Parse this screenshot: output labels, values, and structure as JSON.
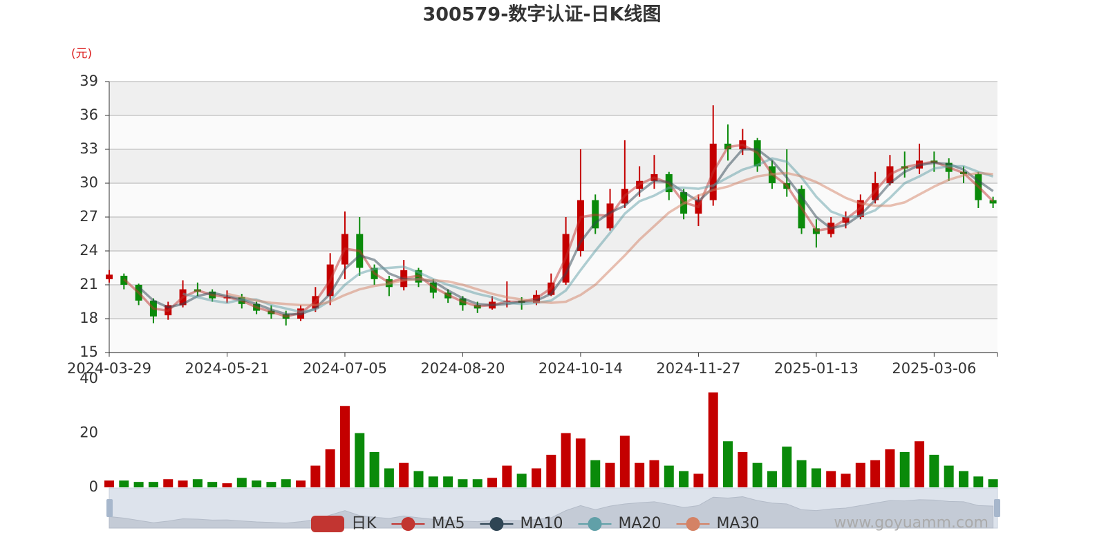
{
  "chart_data": [
    {
      "type": "candlestick",
      "title": "300579-数字认证-日K线图",
      "y_unit": "(元)",
      "categories": [
        "2024-03-29",
        null,
        null,
        null,
        null,
        null,
        null,
        null,
        "2024-05-21",
        null,
        null,
        null,
        null,
        null,
        null,
        null,
        "2024-07-05",
        null,
        null,
        null,
        null,
        null,
        null,
        null,
        "2024-08-20",
        null,
        null,
        null,
        null,
        null,
        null,
        null,
        "2024-10-14",
        null,
        null,
        null,
        null,
        null,
        null,
        null,
        "2024-11-27",
        null,
        null,
        null,
        null,
        null,
        null,
        null,
        "2025-01-13",
        null,
        null,
        null,
        null,
        null,
        null,
        null,
        "2025-03-06",
        null,
        null,
        null,
        null
      ],
      "ylim": [
        15,
        39
      ],
      "yticks": [
        15,
        18,
        21,
        24,
        27,
        30,
        33,
        36,
        39
      ],
      "grid": true,
      "line_opacity": 0.5,
      "up_color": "#c40000",
      "down_color": "#0a8a0a",
      "series": [
        {
          "name": "日K",
          "type": "candlestick",
          "color": "#c23531",
          "values": [
            [
              21.5,
              21.9,
              21.2,
              22.3
            ],
            [
              21.8,
              21.0,
              20.6,
              22.0
            ],
            [
              21.0,
              19.6,
              19.2,
              21.1
            ],
            [
              19.6,
              18.2,
              17.6,
              19.8
            ],
            [
              18.3,
              19.2,
              17.9,
              19.5
            ],
            [
              19.2,
              20.6,
              19.0,
              21.4
            ],
            [
              20.6,
              20.4,
              20.0,
              21.2
            ],
            [
              20.4,
              19.8,
              19.5,
              20.6
            ],
            [
              19.8,
              19.9,
              19.4,
              20.5
            ],
            [
              19.9,
              19.3,
              18.9,
              20.2
            ],
            [
              19.3,
              18.7,
              18.4,
              19.5
            ],
            [
              18.7,
              18.4,
              18.0,
              19.2
            ],
            [
              18.4,
              18.0,
              17.4,
              18.7
            ],
            [
              18.0,
              18.9,
              17.8,
              19.2
            ],
            [
              18.9,
              20.0,
              18.6,
              20.8
            ],
            [
              20.0,
              22.8,
              19.2,
              23.8
            ],
            [
              22.8,
              25.5,
              21.5,
              27.5
            ],
            [
              25.5,
              22.5,
              21.8,
              27.0
            ],
            [
              22.5,
              21.5,
              21.0,
              22.8
            ],
            [
              21.5,
              20.8,
              20.0,
              21.8
            ],
            [
              20.8,
              22.3,
              20.5,
              23.2
            ],
            [
              22.3,
              21.2,
              20.8,
              22.5
            ],
            [
              21.2,
              20.3,
              19.8,
              21.5
            ],
            [
              20.3,
              19.8,
              19.4,
              20.6
            ],
            [
              19.8,
              19.2,
              18.7,
              20.0
            ],
            [
              19.2,
              18.9,
              18.5,
              19.5
            ],
            [
              18.9,
              19.5,
              18.8,
              20.0
            ],
            [
              19.5,
              19.6,
              19.0,
              21.3
            ],
            [
              19.6,
              19.4,
              18.8,
              19.9
            ],
            [
              19.4,
              20.1,
              19.2,
              20.5
            ],
            [
              20.1,
              21.2,
              20.0,
              22.0
            ],
            [
              21.2,
              25.5,
              21.0,
              27.0
            ],
            [
              24.0,
              28.5,
              23.5,
              33.0
            ],
            [
              28.5,
              26.0,
              25.5,
              29.0
            ],
            [
              26.0,
              28.2,
              25.8,
              29.5
            ],
            [
              28.2,
              29.5,
              27.8,
              33.8
            ],
            [
              29.5,
              30.2,
              28.8,
              31.5
            ],
            [
              30.2,
              30.8,
              29.5,
              32.5
            ],
            [
              30.8,
              29.2,
              28.5,
              31.0
            ],
            [
              29.2,
              27.3,
              26.8,
              29.5
            ],
            [
              27.3,
              28.5,
              26.2,
              29.0
            ],
            [
              28.5,
              33.5,
              28.0,
              36.9
            ],
            [
              33.5,
              33.0,
              32.0,
              35.2
            ],
            [
              33.0,
              33.8,
              32.5,
              34.8
            ],
            [
              33.8,
              31.5,
              31.0,
              34.0
            ],
            [
              31.5,
              30.0,
              29.5,
              32.0
            ],
            [
              30.0,
              29.5,
              28.8,
              33.0
            ],
            [
              29.5,
              26.0,
              25.5,
              29.8
            ],
            [
              26.0,
              25.5,
              24.3,
              26.8
            ],
            [
              25.5,
              26.5,
              25.2,
              27.0
            ],
            [
              26.5,
              27.0,
              26.0,
              27.5
            ],
            [
              27.0,
              28.5,
              26.8,
              29.0
            ],
            [
              28.5,
              30.0,
              28.2,
              31.0
            ],
            [
              30.0,
              31.5,
              29.8,
              32.5
            ],
            [
              31.5,
              31.3,
              30.5,
              32.8
            ],
            [
              31.3,
              32.0,
              30.8,
              33.5
            ],
            [
              32.0,
              31.8,
              31.0,
              32.8
            ],
            [
              31.8,
              31.0,
              30.2,
              32.2
            ],
            [
              31.0,
              30.8,
              30.0,
              31.5
            ],
            [
              30.8,
              28.5,
              27.8,
              31.0
            ],
            [
              28.5,
              28.2,
              27.8,
              28.8
            ]
          ]
        },
        {
          "name": "MA5",
          "type": "line",
          "color": "#c23531",
          "values": [
            null,
            21.5,
            20.3,
            18.9,
            18.7,
            19.9,
            20.5,
            20.1,
            19.9,
            19.6,
            19.0,
            18.6,
            18.2,
            18.5,
            19.5,
            21.4,
            24.2,
            24.0,
            22.0,
            21.2,
            21.6,
            21.8,
            20.8,
            20.1,
            19.5,
            19.1,
            19.2,
            19.5,
            19.5,
            19.8,
            20.7,
            23.4,
            27.0,
            27.2,
            27.1,
            28.9,
            29.9,
            30.5,
            30.0,
            28.3,
            27.9,
            31.0,
            33.2,
            33.4,
            32.7,
            30.8,
            29.8,
            27.8,
            25.8,
            26.0,
            26.8,
            27.8,
            29.3,
            30.8,
            31.4,
            31.7,
            31.9,
            31.4,
            30.9,
            29.7,
            28.4
          ]
        },
        {
          "name": "MA10",
          "type": "line",
          "color": "#2f4554",
          "values": [
            null,
            null,
            20.8,
            19.6,
            19.0,
            19.3,
            20.0,
            20.3,
            20.0,
            19.7,
            19.3,
            18.8,
            18.4,
            18.4,
            18.9,
            20.2,
            22.4,
            23.6,
            23.2,
            22.0,
            21.5,
            21.5,
            21.3,
            20.5,
            19.8,
            19.3,
            19.2,
            19.3,
            19.5,
            19.6,
            20.2,
            22.0,
            24.8,
            26.5,
            27.4,
            28.0,
            29.2,
            30.2,
            30.1,
            29.2,
            28.4,
            29.6,
            31.5,
            33.0,
            33.0,
            32.0,
            30.5,
            28.8,
            27.0,
            26.0,
            26.3,
            27.2,
            28.5,
            30.0,
            31.0,
            31.6,
            31.8,
            31.7,
            31.2,
            30.2,
            29.3
          ]
        },
        {
          "name": "MA20",
          "type": "line",
          "color": "#61a0a8",
          "values": [
            null,
            null,
            null,
            null,
            null,
            20.2,
            19.9,
            19.6,
            19.4,
            19.7,
            19.7,
            19.2,
            18.9,
            18.6,
            18.8,
            19.6,
            21.0,
            22.0,
            22.4,
            22.5,
            22.6,
            22.1,
            21.5,
            21.0,
            20.6,
            20.2,
            19.9,
            19.4,
            19.3,
            19.4,
            19.6,
            20.5,
            22.3,
            24.0,
            25.6,
            27.3,
            28.4,
            28.9,
            29.6,
            29.6,
            29.5,
            29.8,
            30.5,
            31.2,
            31.6,
            32.2,
            31.9,
            30.5,
            28.8,
            27.5,
            27.0,
            27.1,
            27.6,
            28.7,
            30.0,
            30.6,
            31.3,
            31.5,
            31.5,
            31.0,
            30.6
          ]
        },
        {
          "name": "MA30",
          "type": "line",
          "color": "#d48265",
          "values": [
            null,
            null,
            null,
            null,
            null,
            null,
            null,
            null,
            20.2,
            19.9,
            19.6,
            19.4,
            19.3,
            19.2,
            19.2,
            19.5,
            20.1,
            20.6,
            20.9,
            21.1,
            21.4,
            21.5,
            21.4,
            21.3,
            21.0,
            20.6,
            20.2,
            19.9,
            19.7,
            19.5,
            19.4,
            19.5,
            20.1,
            21.0,
            22.3,
            23.6,
            25.0,
            26.2,
            27.4,
            28.2,
            28.9,
            29.4,
            29.7,
            30.2,
            30.6,
            30.8,
            30.9,
            30.6,
            30.1,
            29.4,
            28.7,
            28.2,
            28.0,
            28.0,
            28.3,
            29.0,
            29.7,
            30.3,
            30.7,
            30.9,
            30.8
          ]
        }
      ],
      "watermark": "www.goyuamm.com"
    },
    {
      "type": "bar",
      "ylim": [
        0,
        40
      ],
      "yticks": [
        0,
        20,
        40
      ],
      "values": [
        2.5,
        2.5,
        2,
        2,
        3,
        2.5,
        3,
        2,
        1.5,
        3.5,
        2.5,
        2,
        3,
        2.5,
        8,
        14,
        30,
        20,
        13,
        7,
        9,
        6,
        4,
        4,
        3,
        3,
        3.5,
        8,
        5,
        7,
        12,
        20,
        18,
        10,
        9,
        19,
        9,
        10,
        8,
        6,
        5,
        35,
        17,
        13,
        9,
        6,
        15,
        10,
        7,
        6,
        5,
        9,
        10,
        14,
        13,
        17,
        12,
        8,
        6,
        4,
        3
      ]
    }
  ]
}
